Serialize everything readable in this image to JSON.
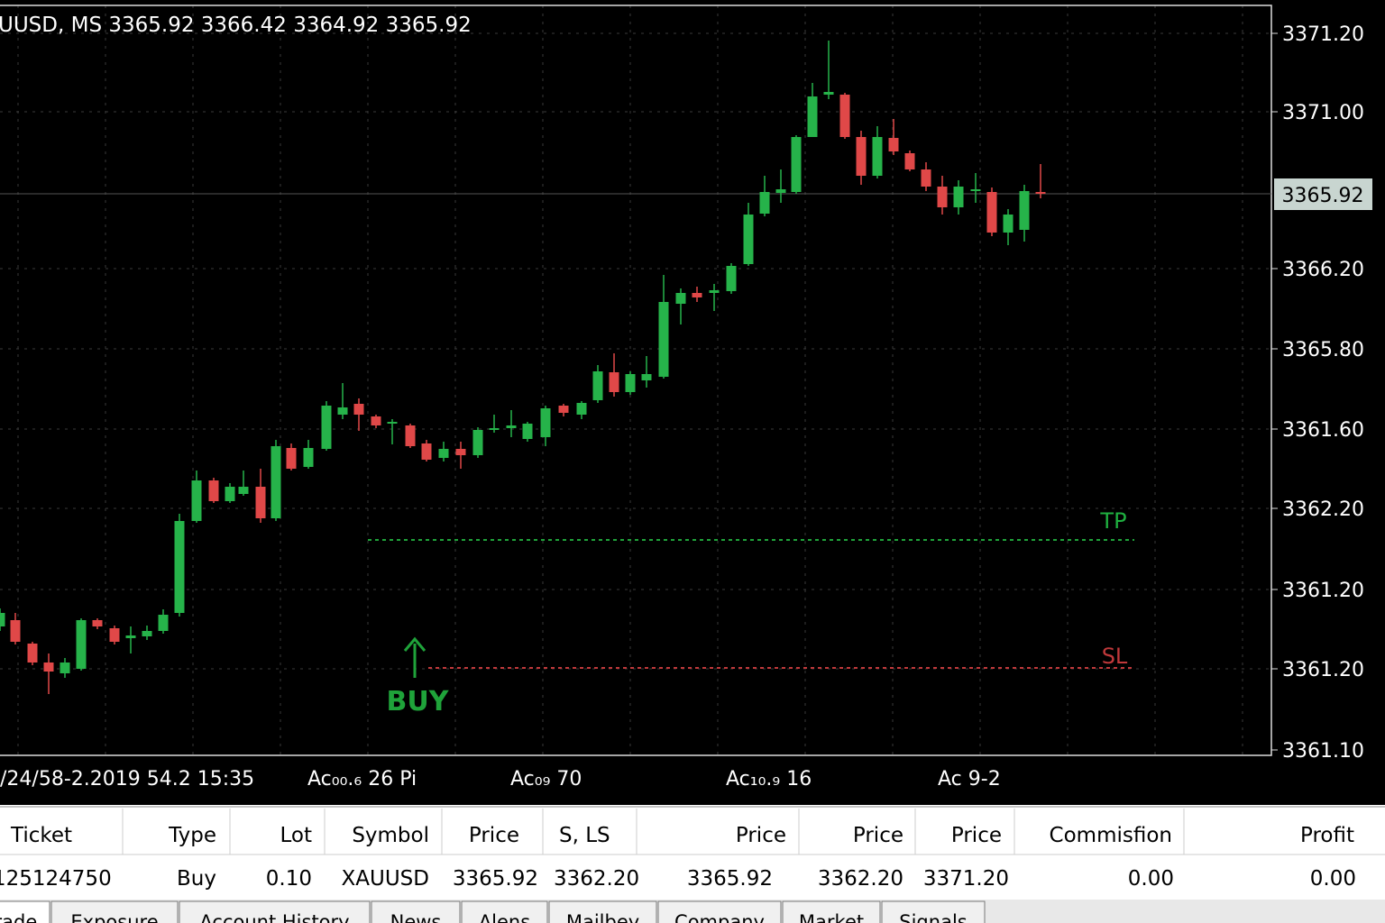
{
  "chart_header": "UUSD, MS  3365.92 3366.42 3364.92 3365.92",
  "price_axis": [
    "3371.20",
    "3371.00",
    "3366.20",
    "3365.80",
    "3361.60",
    "3362.20",
    "3361.20",
    "3361.20",
    "3361.10"
  ],
  "current_price": "3365.92",
  "time_axis": [
    "/24/58-2.2019 54.2  15:35",
    "Ac₀₀.₆ 26 Pi",
    "Ac₀₉ 70",
    "Ac₁₀.₉ 16",
    "Ac 9-2"
  ],
  "annotations": {
    "tp": "TP",
    "sl": "SL",
    "buy": "BUY"
  },
  "table": {
    "columns": [
      "Ticket",
      "Type",
      "Lot",
      "Symbol",
      "Price",
      "S, LS",
      "Price",
      "Price",
      "Price",
      "Commisfion",
      "Profit"
    ],
    "rows": [
      [
        "125124750",
        "Buy",
        "0.10",
        "XAUUSD",
        "3365.92",
        "3362.20",
        "3365.92",
        "3362.20",
        "3371.20",
        "0.00",
        "0.00"
      ]
    ]
  },
  "tabs": [
    "Trade",
    "Exposure",
    "Account History",
    "News",
    "Alens",
    "Mailbey",
    "Company",
    "Market",
    "Signals"
  ]
}
